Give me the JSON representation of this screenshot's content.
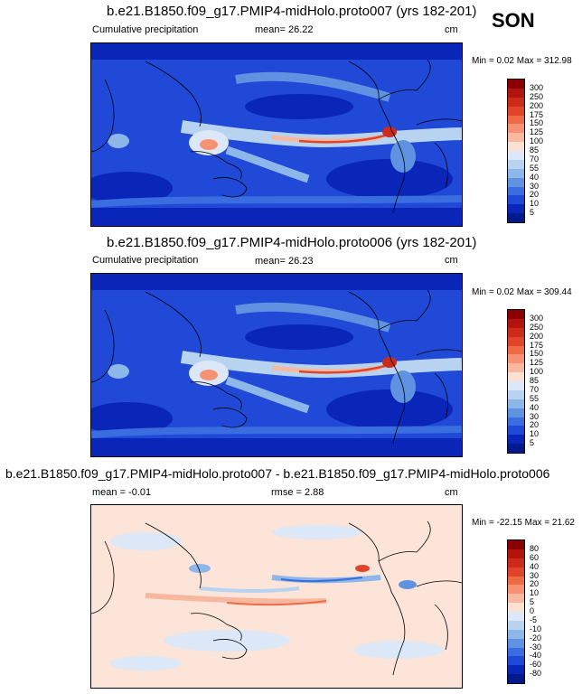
{
  "season": "SON",
  "panels": [
    {
      "title": "b.e21.B1850.f09_g17.PMIP4-midHolo.proto007 (yrs 182-201)",
      "left_label": "Cumulative precipitation",
      "mean_label": "mean=  26.22",
      "unit": "cm",
      "minmax": "Min =   0.02 Max = 312.98",
      "colorbar_labels": [
        "300",
        "250",
        "200",
        "175",
        "150",
        "125",
        "100",
        "85",
        "70",
        "55",
        "40",
        "30",
        "20",
        "10",
        "5"
      ]
    },
    {
      "title": "b.e21.B1850.f09_g17.PMIP4-midHolo.proto006 (yrs 182-201)",
      "left_label": "Cumulative precipitation",
      "mean_label": "mean=  26.23",
      "unit": "cm",
      "minmax": "Min =   0.02 Max = 309.44",
      "colorbar_labels": [
        "300",
        "250",
        "200",
        "175",
        "150",
        "125",
        "100",
        "85",
        "70",
        "55",
        "40",
        "30",
        "20",
        "10",
        "5"
      ]
    },
    {
      "title": "b.e21.B1850.f09_g17.PMIP4-midHolo.proto007 - b.e21.B1850.f09_g17.PMIP4-midHolo.proto006",
      "mean_label": "mean =  -0.01",
      "rmse_label": "rmse =   2.88",
      "unit": "cm",
      "minmax": "Min = -22.15 Max =  21.62",
      "colorbar_labels": [
        "80",
        "60",
        "40",
        "30",
        "20",
        "10",
        "5",
        "0",
        "-5",
        "-10",
        "-20",
        "-30",
        "-40",
        "-60",
        "-80"
      ]
    }
  ],
  "colors": {
    "precip_scale": [
      "#8b0000",
      "#b2140d",
      "#cc2a1b",
      "#e0452b",
      "#ef6a45",
      "#f59274",
      "#f8b8a0",
      "#fbe1d3",
      "#dce8f7",
      "#b8d3f0",
      "#8db7e8",
      "#5f92e0",
      "#3a6ee0",
      "#1f49d6",
      "#0a26b8",
      "#001a8c"
    ],
    "diff_scale": [
      "#8b0000",
      "#b2140d",
      "#cc2a1b",
      "#e0452b",
      "#ef6a45",
      "#f59274",
      "#f8b8a0",
      "#fbe1d3",
      "#dce8f7",
      "#b8d3f0",
      "#8db7e8",
      "#5f92e0",
      "#3a6ee0",
      "#1f49d6",
      "#0a26b8",
      "#001a8c"
    ],
    "precip_background": "#1f49d6",
    "diff_background": "#fce4d8"
  }
}
